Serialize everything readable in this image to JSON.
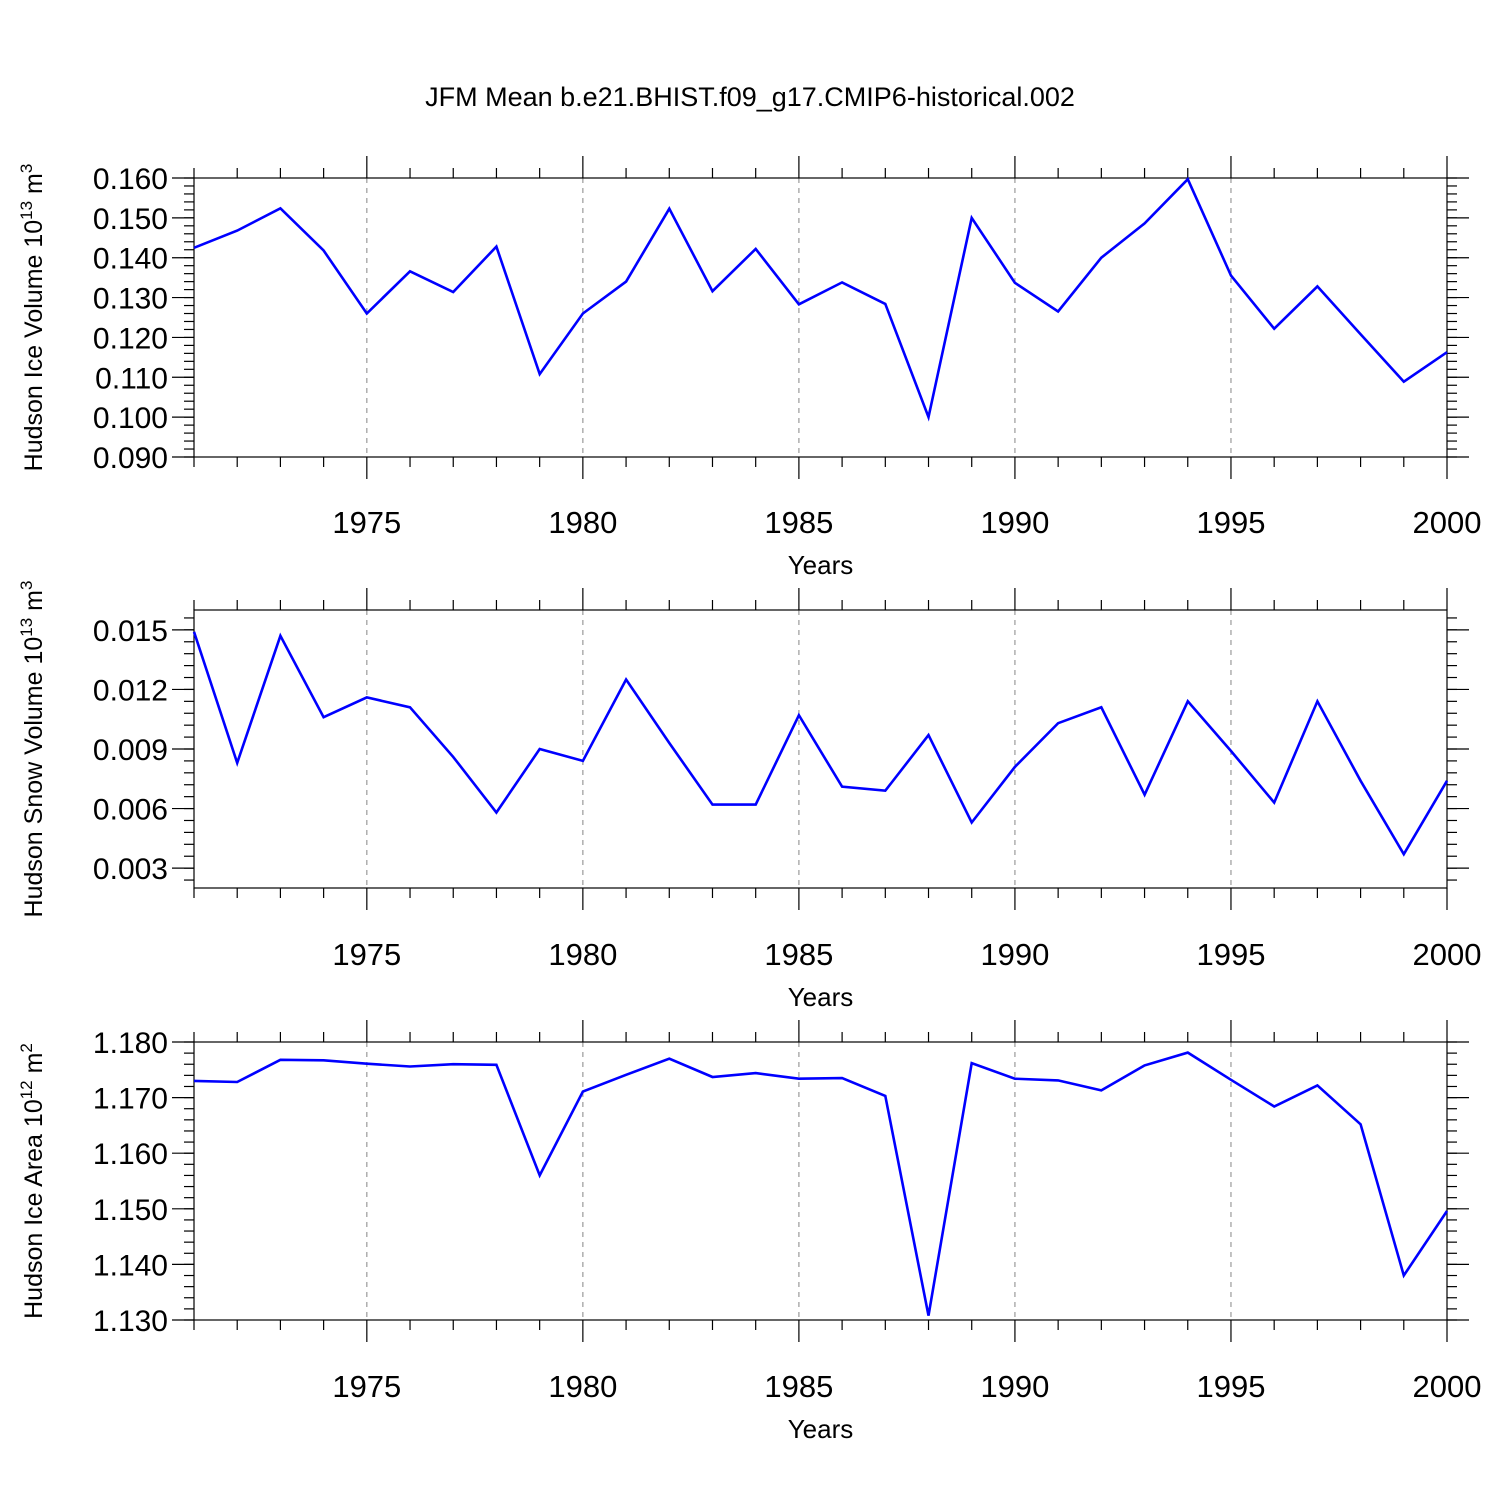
{
  "title": "JFM Mean b.e21.BHIST.f09_g17.CMIP6-historical.002",
  "colors": {
    "series": "#0000ff",
    "axis": "#000000",
    "grid": "#9a9a9a"
  },
  "chart_data": [
    {
      "type": "line",
      "ylabel": {
        "main": "Hudson Ice Volume 10",
        "exp": "13",
        "unit": " m",
        "unit_exp": "3"
      },
      "xlabel": "Years",
      "xlim": [
        1971,
        2000
      ],
      "ylim": [
        0.09,
        0.16
      ],
      "yticks": [
        0.09,
        0.1,
        0.11,
        0.12,
        0.13,
        0.14,
        0.15,
        0.16
      ],
      "ytick_labels": [
        "0.090",
        "0.100",
        "0.110",
        "0.120",
        "0.130",
        "0.140",
        "0.150",
        "0.160"
      ],
      "yminor_step": 0.002,
      "xticks": [
        1975,
        1980,
        1985,
        1990,
        1995,
        2000
      ],
      "xtick_labels": [
        "1975",
        "1980",
        "1985",
        "1990",
        "1995",
        "2000"
      ],
      "grid": "dashed vertical at major x ticks",
      "x": [
        1971,
        1972,
        1973,
        1974,
        1975,
        1976,
        1977,
        1978,
        1979,
        1980,
        1981,
        1982,
        1983,
        1984,
        1985,
        1986,
        1987,
        1988,
        1989,
        1990,
        1991,
        1992,
        1993,
        1994,
        1995,
        1996,
        1997,
        1998,
        1999,
        2000
      ],
      "values": [
        0.1425,
        0.1468,
        0.1524,
        0.1418,
        0.126,
        0.1366,
        0.1314,
        0.1428,
        0.1108,
        0.126,
        0.134,
        0.1523,
        0.1316,
        0.1422,
        0.1283,
        0.1338,
        0.1284,
        0.1,
        0.15,
        0.1337,
        0.1265,
        0.14,
        0.1486,
        0.1597,
        0.1355,
        0.1222,
        0.1328,
        0.1208,
        0.1089,
        0.1163
      ]
    },
    {
      "type": "line",
      "ylabel": {
        "main": "Hudson Snow Volume 10",
        "exp": "13",
        "unit": " m",
        "unit_exp": "3"
      },
      "xlabel": "Years",
      "xlim": [
        1971,
        2000
      ],
      "ylim": [
        0.002,
        0.016
      ],
      "yticks": [
        0.003,
        0.006,
        0.009,
        0.012,
        0.015
      ],
      "ytick_labels": [
        "0.003",
        "0.006",
        "0.009",
        "0.012",
        "0.015"
      ],
      "yminor_step": 0.0006,
      "yminor_start": 0.0024,
      "xticks": [
        1975,
        1980,
        1985,
        1990,
        1995,
        2000
      ],
      "xtick_labels": [
        "1975",
        "1980",
        "1985",
        "1990",
        "1995",
        "2000"
      ],
      "grid": "dashed vertical at major x ticks",
      "x": [
        1971,
        1972,
        1973,
        1974,
        1975,
        1976,
        1977,
        1978,
        1979,
        1980,
        1981,
        1982,
        1983,
        1984,
        1985,
        1986,
        1987,
        1988,
        1989,
        1990,
        1991,
        1992,
        1993,
        1994,
        1995,
        1996,
        1997,
        1998,
        1999,
        2000
      ],
      "values": [
        0.0149,
        0.0083,
        0.0147,
        0.0106,
        0.0116,
        0.0111,
        0.0086,
        0.0058,
        0.009,
        0.0084,
        0.0125,
        0.0093,
        0.0062,
        0.0062,
        0.0107,
        0.0071,
        0.0069,
        0.0097,
        0.0053,
        0.0081,
        0.0103,
        0.0111,
        0.0067,
        0.0114,
        0.0089,
        0.0063,
        0.0114,
        0.0074,
        0.0037,
        0.0074
      ]
    },
    {
      "type": "line",
      "ylabel": {
        "main": "Hudson Ice Area 10",
        "exp": "12",
        "unit": " m",
        "unit_exp": "2"
      },
      "xlabel": "Years",
      "xlim": [
        1971,
        2000
      ],
      "ylim": [
        1.13,
        1.18
      ],
      "yticks": [
        1.13,
        1.14,
        1.15,
        1.16,
        1.17,
        1.18
      ],
      "ytick_labels": [
        "1.130",
        "1.140",
        "1.150",
        "1.160",
        "1.170",
        "1.180"
      ],
      "yminor_step": 0.002,
      "xticks": [
        1975,
        1980,
        1985,
        1990,
        1995,
        2000
      ],
      "xtick_labels": [
        "1975",
        "1980",
        "1985",
        "1990",
        "1995",
        "2000"
      ],
      "grid": "dashed vertical at major x ticks",
      "x": [
        1971,
        1972,
        1973,
        1974,
        1975,
        1976,
        1977,
        1978,
        1979,
        1980,
        1981,
        1982,
        1983,
        1984,
        1985,
        1986,
        1987,
        1988,
        1989,
        1990,
        1991,
        1992,
        1993,
        1994,
        1995,
        1996,
        1997,
        1998,
        1999,
        2000
      ],
      "values": [
        1.173,
        1.1728,
        1.1768,
        1.1767,
        1.1761,
        1.1756,
        1.176,
        1.1759,
        1.156,
        1.1711,
        1.1741,
        1.177,
        1.1737,
        1.1744,
        1.1734,
        1.1735,
        1.1703,
        1.1308,
        1.1762,
        1.1734,
        1.1731,
        1.1713,
        1.1758,
        1.1781,
        1.1732,
        1.1684,
        1.1722,
        1.1652,
        1.138,
        1.1496
      ]
    }
  ]
}
